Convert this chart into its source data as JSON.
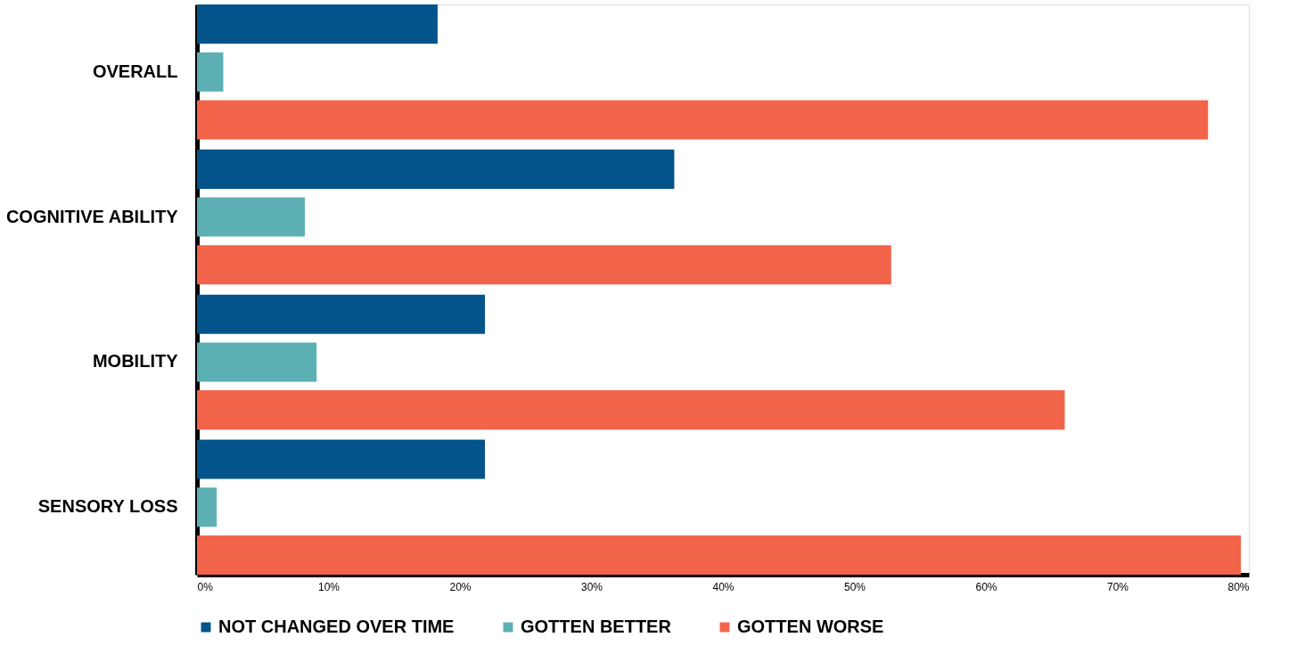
{
  "chart_data": {
    "type": "bar",
    "orientation": "horizontal",
    "categories": [
      "OVERALL",
      "COGNITIVE ABILITY",
      "MOBILITY",
      "SENSORY LOSS"
    ],
    "series": [
      {
        "name": "NOT CHANGED OVER TIME",
        "color": "#02548a",
        "values": [
          18.3,
          36.3,
          21.9,
          21.9
        ]
      },
      {
        "name": "GOTTEN BETTER",
        "color": "#5cb0b3",
        "values": [
          2.0,
          8.2,
          9.1,
          1.5
        ]
      },
      {
        "name": "GOTTEN WORSE",
        "color": "#f2644a",
        "values": [
          76.9,
          52.8,
          66.0,
          79.4
        ]
      }
    ],
    "xlim": [
      0,
      80
    ],
    "xticks": [
      {
        "value": 0,
        "label": "0%"
      },
      {
        "value": 10,
        "label": "10%"
      },
      {
        "value": 20,
        "label": "20%"
      },
      {
        "value": 30,
        "label": "30%"
      },
      {
        "value": 40,
        "label": "40%"
      },
      {
        "value": 50,
        "label": "50%"
      },
      {
        "value": 60,
        "label": "60%"
      },
      {
        "value": 70,
        "label": "70%"
      },
      {
        "value": 80,
        "label": "80%"
      }
    ],
    "grid": false,
    "legend": "bottom"
  }
}
